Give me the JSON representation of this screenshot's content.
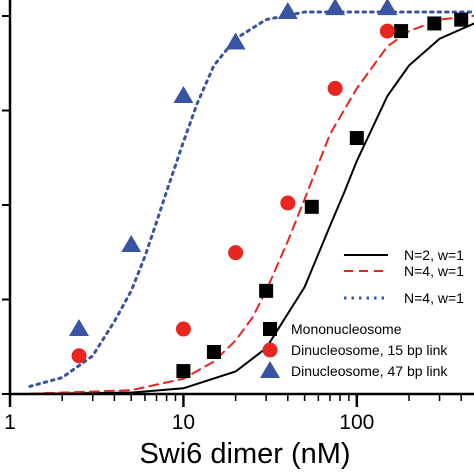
{
  "chart_data": {
    "type": "scatter",
    "xscale": "log",
    "xlim": [
      1,
      474
    ],
    "ylim": [
      0,
      1
    ],
    "xlabel": "Swi6 dimer (nM)",
    "ylabel": "",
    "title": "",
    "x_ticks": [
      {
        "value": 1,
        "label": "1"
      },
      {
        "value": 10,
        "label": "10"
      },
      {
        "value": 100,
        "label": "100"
      }
    ],
    "grid": false,
    "legend_placement": "bottom-right",
    "series": [
      {
        "name": "Mononucleosome",
        "kind": "points",
        "marker": "square",
        "color": "#000000",
        "x": [
          10,
          15,
          30,
          55,
          100,
          180,
          280,
          400
        ],
        "y": [
          0.06,
          0.11,
          0.27,
          0.49,
          0.67,
          0.95,
          0.97,
          0.98
        ]
      },
      {
        "name": "Dinucleosome, 15 bp link",
        "kind": "points",
        "marker": "circle",
        "color": "#e8251f",
        "x": [
          2.5,
          10,
          20,
          40,
          75,
          150
        ],
        "y": [
          0.1,
          0.17,
          0.37,
          0.5,
          0.8,
          0.95
        ]
      },
      {
        "name": "Dinucleosome, 47 bp link",
        "kind": "points",
        "marker": "triangle",
        "color": "#3a54a4",
        "x": [
          2.5,
          5,
          10,
          20,
          40,
          75,
          150
        ],
        "y": [
          0.17,
          0.39,
          0.78,
          0.92,
          1.0,
          1.01,
          1.01
        ]
      },
      {
        "name": "N=2, w=1",
        "kind": "curve",
        "style": "solid",
        "color": "#000000",
        "points": [
          [
            1.3,
            0.0002
          ],
          [
            5,
            0.0037
          ],
          [
            10,
            0.015
          ],
          [
            20,
            0.059
          ],
          [
            30,
            0.12
          ],
          [
            50,
            0.28
          ],
          [
            70,
            0.44
          ],
          [
            85,
            0.53
          ],
          [
            100,
            0.61
          ],
          [
            150,
            0.78
          ],
          [
            200,
            0.86
          ],
          [
            300,
            0.93
          ],
          [
            474,
            0.97
          ]
        ]
      },
      {
        "name": "N=4, w=1",
        "kind": "curve",
        "style": "dashed",
        "color": "#e8251f",
        "points": [
          [
            1.3,
            0.0007
          ],
          [
            5,
            0.01
          ],
          [
            10,
            0.04
          ],
          [
            15,
            0.085
          ],
          [
            20,
            0.14
          ],
          [
            25,
            0.2
          ],
          [
            30,
            0.27
          ],
          [
            40,
            0.4
          ],
          [
            50,
            0.51
          ],
          [
            70,
            0.68
          ],
          [
            100,
            0.8
          ],
          [
            150,
            0.91
          ],
          [
            200,
            0.95
          ],
          [
            300,
            0.98
          ],
          [
            474,
            0.99
          ]
        ]
      },
      {
        "name": "N=4, w=1",
        "kind": "curve",
        "style": "dotted",
        "color": "#3a54a4",
        "points": [
          [
            1.3,
            0.02
          ],
          [
            2,
            0.043
          ],
          [
            3,
            0.1
          ],
          [
            4,
            0.19
          ],
          [
            5,
            0.27
          ],
          [
            6,
            0.36
          ],
          [
            7,
            0.45
          ],
          [
            8,
            0.53
          ],
          [
            10,
            0.66
          ],
          [
            12,
            0.76
          ],
          [
            15,
            0.86
          ],
          [
            20,
            0.93
          ],
          [
            30,
            0.98
          ],
          [
            50,
            1.0
          ],
          [
            474,
            1.0
          ]
        ]
      }
    ]
  }
}
